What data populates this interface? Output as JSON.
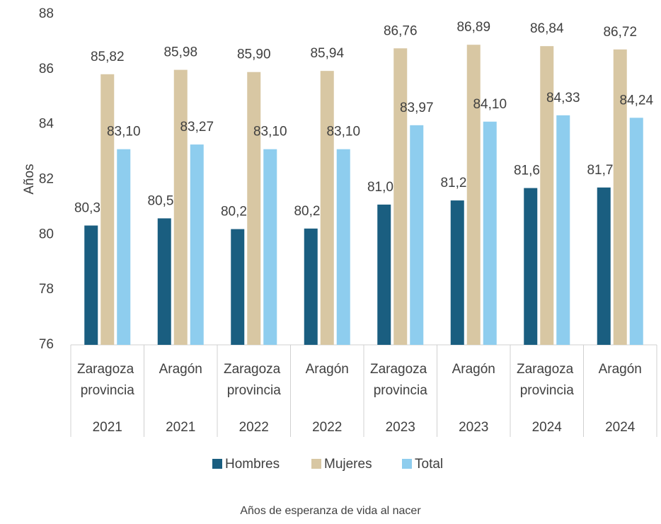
{
  "chart_data": {
    "type": "bar",
    "y_label": "Años",
    "caption": "Años de esperanza de vida al nacer",
    "categories": [
      "Zaragoza provincia",
      "Aragón",
      "Zaragoza provincia",
      "Aragón",
      "Zaragoza provincia",
      "Aragón",
      "Zaragoza provincia",
      "Aragón"
    ],
    "years": [
      "2021",
      "2021",
      "2022",
      "2022",
      "2023",
      "2023",
      "2024",
      "2024"
    ],
    "series": [
      {
        "name": "Hombres",
        "color": "#1a5e80",
        "values": [
          80.33,
          80.59,
          80.2,
          80.22,
          81.09,
          81.24,
          81.69,
          81.71
        ],
        "value_labels": [
          "80,33",
          "80,59",
          "80,20",
          "80,22",
          "81,09",
          "81,24",
          "81,69",
          "81,71"
        ]
      },
      {
        "name": "Mujeres",
        "color": "#d8c7a3",
        "values": [
          85.82,
          85.98,
          85.9,
          85.94,
          86.76,
          86.89,
          86.84,
          86.72
        ],
        "value_labels": [
          "85,82",
          "85,98",
          "85,90",
          "85,94",
          "86,76",
          "86,89",
          "86,84",
          "86,72"
        ]
      },
      {
        "name": "Total",
        "color": "#8ecdee",
        "values": [
          83.1,
          83.27,
          83.1,
          83.1,
          83.97,
          84.1,
          84.33,
          84.24
        ],
        "value_labels": [
          "83,10",
          "83,27",
          "83,10",
          "83,10",
          "83,97",
          "84,10",
          "84,33",
          "84,24"
        ]
      }
    ],
    "ylim": [
      76,
      88
    ],
    "yticks": [
      76,
      78,
      80,
      82,
      84,
      86,
      88
    ],
    "legend": "bottom"
  }
}
